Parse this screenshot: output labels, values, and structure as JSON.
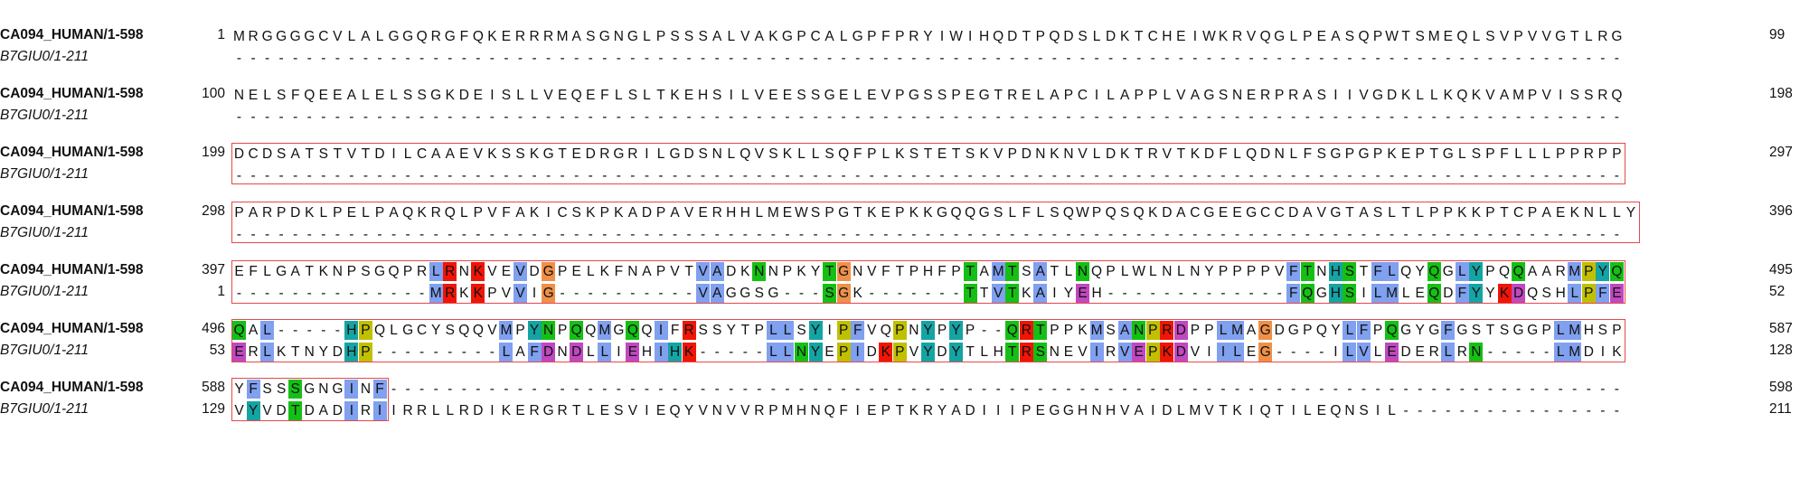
{
  "sequences": [
    {
      "name": "CA094_HUMAN/1-598",
      "start": 1,
      "end": 598
    },
    {
      "name": "B7GIU0/1-211",
      "start": 1,
      "end": 211
    }
  ],
  "blocks": [
    {
      "seq1": "MRGGGGCVLALGGQRGFQKERRRMASGNGLPSSSALVAKGPCALGPFPRYIWIHQDTPQDSLDKTCHEIWKRVQGLPEASQPWTSMEQLSVPVVGTLRG",
      "seq1_start": "1",
      "seq1_end": "99",
      "seq2": "---------------------------------------------------------------------------------------------------",
      "seq2_start": "",
      "seq2_end": ""
    },
    {
      "seq1": "NELSFQEEALELSSGKDEISLLVEQEFLSLTKEHSILVEESSGELEVPGSSPEGTRELAPCILAPPLVAGSNERPRASIIVGDKLLKQKVAMPVISSRQ",
      "seq1_start": "100",
      "seq1_end": "198",
      "seq2": "---------------------------------------------------------------------------------------------------",
      "seq2_start": "",
      "seq2_end": ""
    },
    {
      "seq1": "DCDSATSTVTDILCAAEVKSSKGTEDRGRILGDSNLQVSKLLSQFPLKSTETSKVPDNKNVLDKTRVTKDFLQDNLFSGPGPKEPTGLSPFLLLPPRPP",
      "seq1_start": "199",
      "seq1_end": "297",
      "seq2": "---------------------------------------------------------------------------------------------------",
      "seq2_start": "",
      "seq2_end": ""
    },
    {
      "seq1": "PARPDKLPELPAQKRQLPVFAKICSKPKADPAVERHHLMEWSPGTKEPKKGQQGSLFLSQWPQSQKDACGEEGCCDAVGTASLTLPPKKPTCPAEKNLLY",
      "seq1_start": "298",
      "seq1_end": "396",
      "seq2": "---------------------------------------------------------------------------------------------------",
      "seq2_start": "",
      "seq2_end": ""
    },
    {
      "seq1": "EFLGATKNPSGQPRLRNKVEVDGPELKFNAPVTVADKNNPKYTGNVFTPHFPTAMTSATLNQPLWLNLNYPPPPVFTNHSTFLQYQGLYPQQAARMPYQ",
      "seq1_start": "397",
      "seq1_end": "495",
      "seq2": "--------------MRKKPVVIG----------VAGGSG---SGK-------TTVTKAIYEH-------------FQGHSILMLEQDFYYKDQSHLPFE",
      "seq2_start": "1",
      "seq2_end": "52"
    },
    {
      "seq1": "QAL-----HPQLGCYSQQVMPYNPQQMGQQIFRSSYTPLLSYIPFVQPNYPYP--QRTPPKMSANPRDPPLMAGDGPQYLFPQGYGFGSTSGGPLMHSP",
      "seq1_start": "496",
      "seq1_end": "587",
      "seq2": "ERLKTNYDHP---------LAFDNDLLIEHIHK-----LLNYEPIDKPVYDYTLHTRSNEVIRVEPKDVIILEG----ILVLEDERLRN-----LMDIK",
      "seq2_start": "53",
      "seq2_end": "128"
    },
    {
      "seq1": "YFSSSGNGINF----------------------------------------------------------------------------------------",
      "seq1_start": "588",
      "seq1_end": "598",
      "seq2": "VYVDTDADIRIIRRLLRDIKERGRTLESVIEQYVNVVRPMHNQFIEPTKRYADIIIPEGGHNHVAIDLMVTKIQTILEQNSIL----------------",
      "seq2_start": "129",
      "seq2_end": "211"
    }
  ],
  "color_scheme": {
    "hydrophobic": "#80a0f0",
    "positive": "#f01505",
    "negative": "#c048c0",
    "polar": "#15c015",
    "cysteine": "#f08080",
    "glycine": "#f09048",
    "proline": "#c0c000",
    "aromatic": "#15a4a4",
    "box_border": "#e6484d"
  },
  "colored_ranges": {
    "4": {
      "seq1": "RNKVEVDGPELKFNAPVTVADKNNPKYTGNVFTPHFPTAMTSATLNQPLWLNLNYPPPPVFTNHSTFLQYQGLYPQQAARMPYQ",
      "seq2": ""
    }
  }
}
